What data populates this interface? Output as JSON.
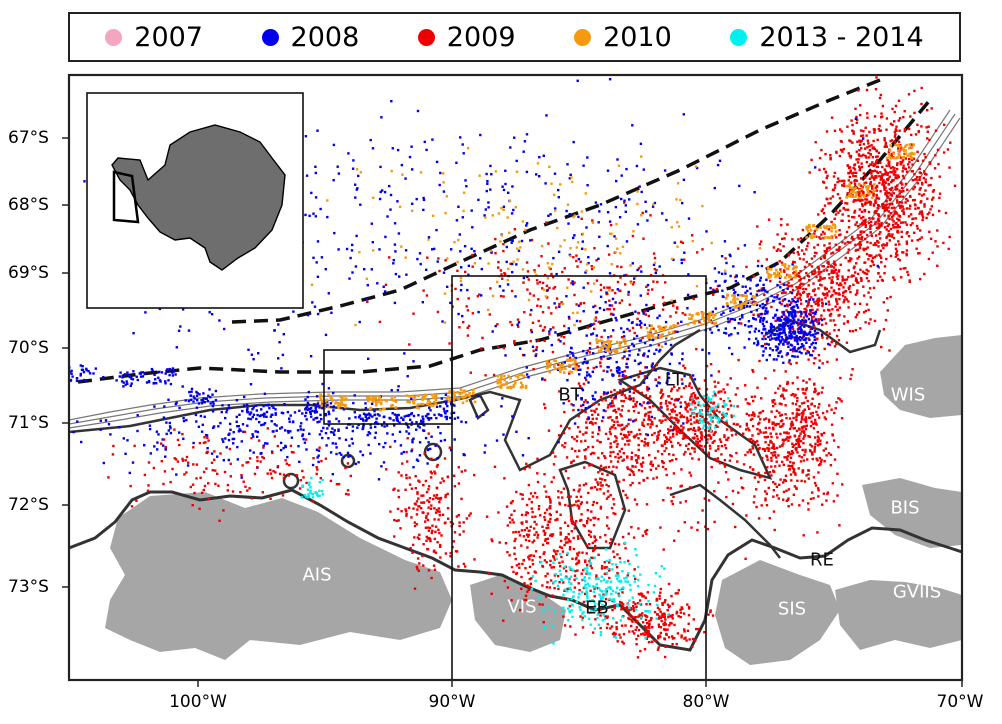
{
  "legend": {
    "items": [
      {
        "label": "2007",
        "color": "#f4a6c0"
      },
      {
        "label": "2008",
        "color": "#0000ee"
      },
      {
        "label": "2009",
        "color": "#ee0000"
      },
      {
        "label": "2010",
        "color": "#f59a10"
      },
      {
        "label": "2013 - 2014",
        "color": "#00f0f0"
      }
    ]
  },
  "axes": {
    "latitude_labels": [
      "67°S",
      "68°S",
      "69°S",
      "70°S",
      "71°S",
      "72°S",
      "73°S"
    ],
    "longitude_labels": [
      "100°W",
      "90°W",
      "80°W",
      "70°W"
    ]
  },
  "regions": [
    {
      "label": "WIS",
      "kind": "ice"
    },
    {
      "label": "BIS",
      "kind": "ice"
    },
    {
      "label": "GVIIS",
      "kind": "ice"
    },
    {
      "label": "SIS",
      "kind": "ice"
    },
    {
      "label": "AIS",
      "kind": "ice"
    },
    {
      "label": "VIS",
      "kind": "ice"
    },
    {
      "label": "EB",
      "kind": "sea"
    },
    {
      "label": "BT",
      "kind": "sea"
    },
    {
      "label": "LT",
      "kind": "sea"
    },
    {
      "label": "RE",
      "kind": "sea"
    }
  ],
  "colors": {
    "ice_shelf": "#a6a6a6",
    "land_inset": "#6e6e6e",
    "frame": "#222222"
  }
}
